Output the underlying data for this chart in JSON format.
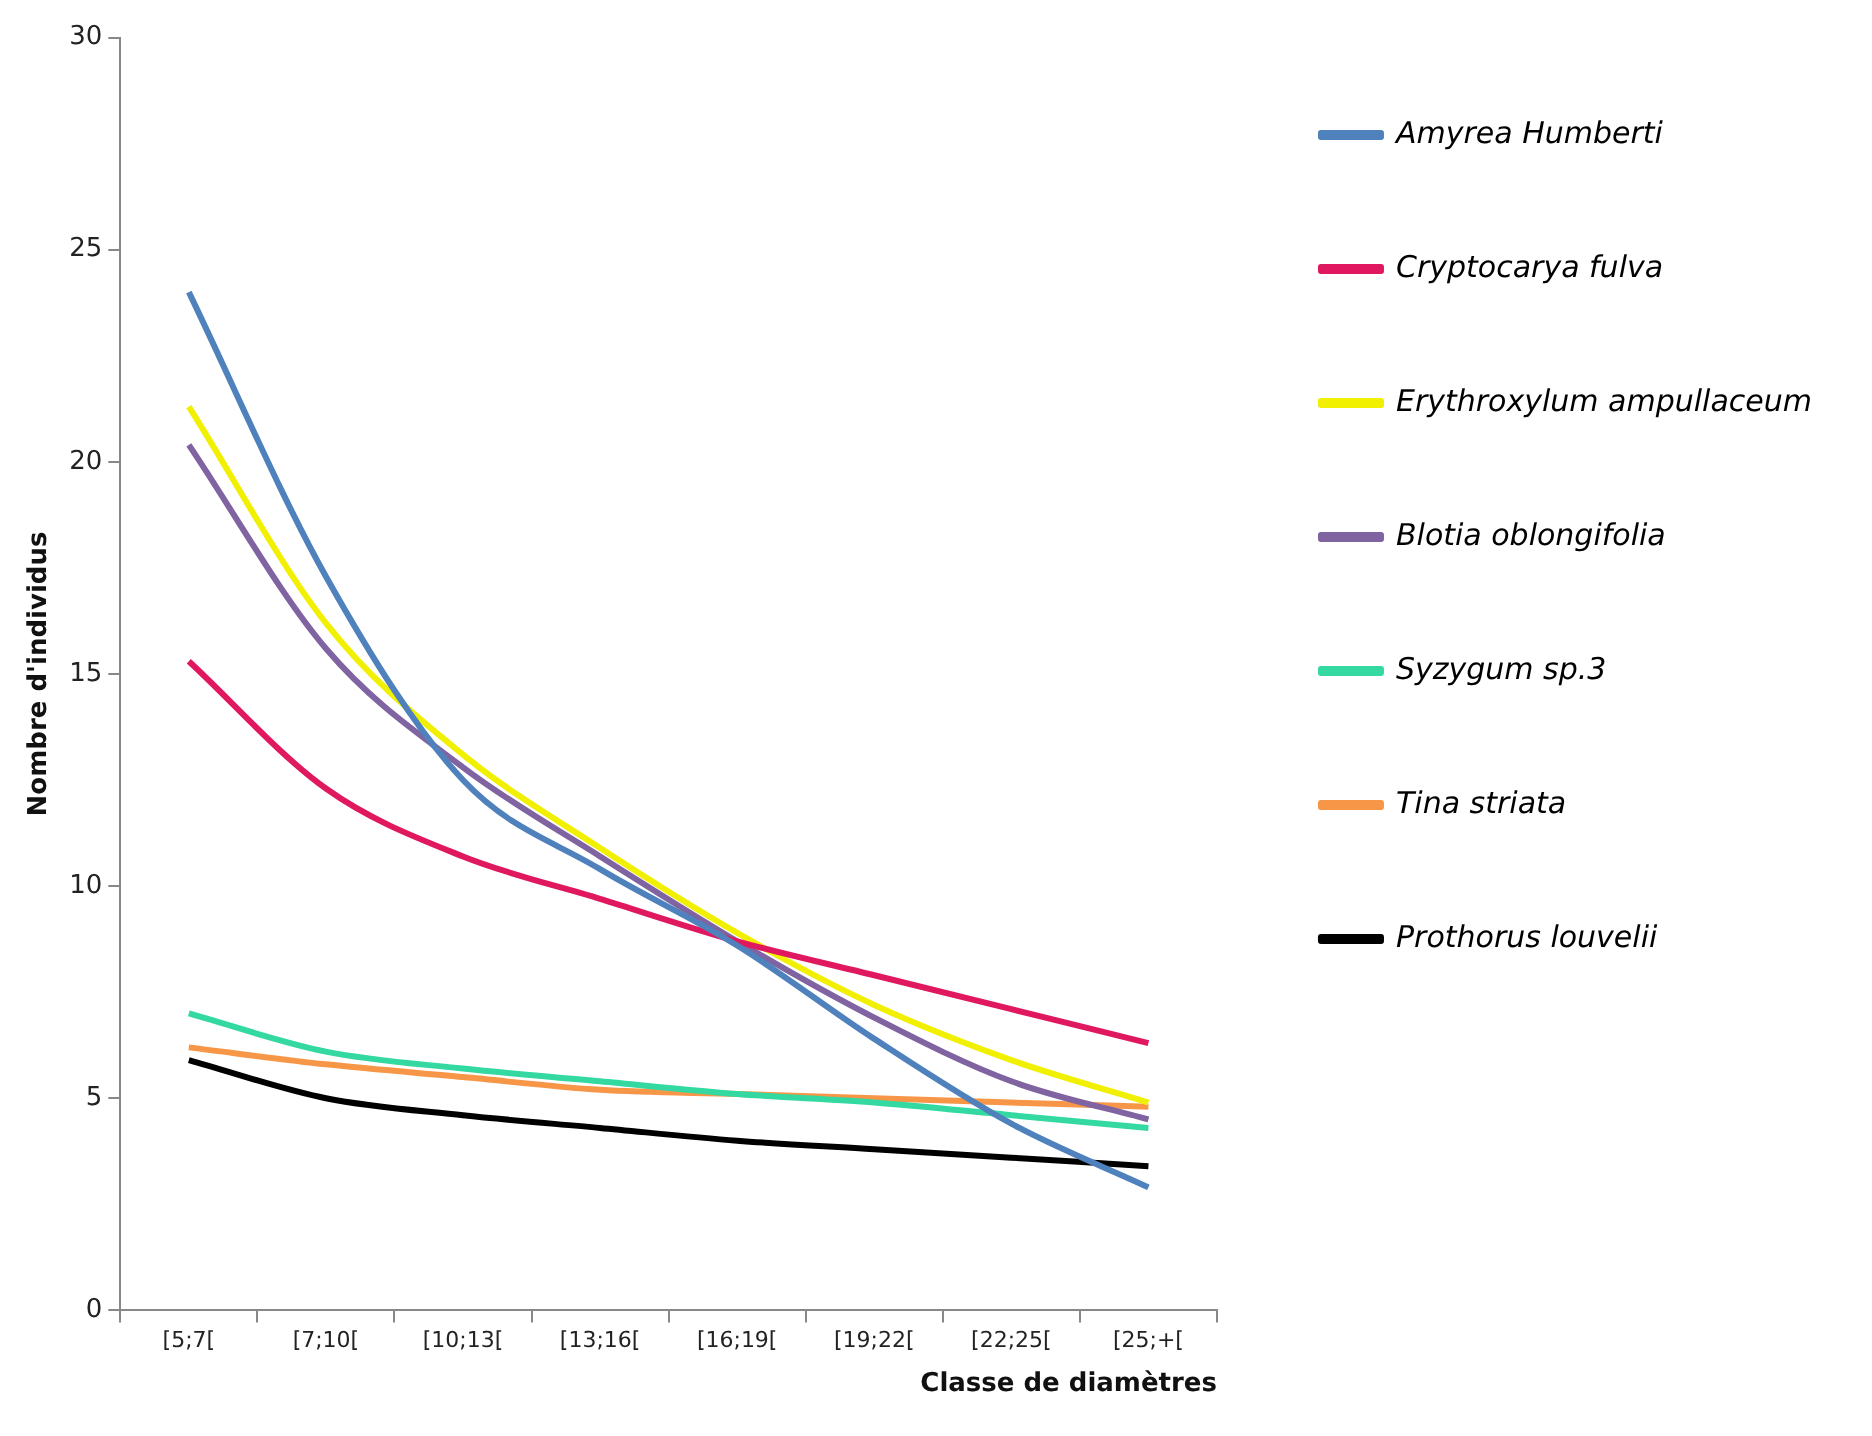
{
  "chart_data": {
    "type": "line",
    "xlabel": "Classe de diamètres",
    "ylabel": "Nombre d'individus",
    "categories": [
      "[5;7[",
      "[7;10[",
      "[10;13[",
      "[13;16[",
      "[16;19[",
      "[19;22[",
      "[22;25[",
      "[25;+["
    ],
    "series": [
      {
        "name": "Amyrea Humberti",
        "color": "#4f81bd",
        "values": [
          24,
          17.3,
          12.5,
          10.4,
          8.6,
          6.4,
          4.4,
          2.9
        ]
      },
      {
        "name": "Cryptocarya fulva",
        "color": "#e0185f",
        "values": [
          15.3,
          12.3,
          10.7,
          9.7,
          8.7,
          7.9,
          7.1,
          6.3
        ]
      },
      {
        "name": "Erythroxylum ampullaceum",
        "color": "#f0f000",
        "values": [
          21.3,
          16.2,
          13.1,
          10.9,
          8.9,
          7.2,
          5.9,
          4.9
        ]
      },
      {
        "name": "Blotia oblongifolia",
        "color": "#8064a2",
        "values": [
          20.4,
          15.6,
          12.8,
          10.7,
          8.7,
          6.9,
          5.4,
          4.5
        ]
      },
      {
        "name": "Syzygum sp.3",
        "color": "#33d9a0",
        "values": [
          7,
          6.1,
          5.7,
          5.4,
          5.1,
          4.9,
          4.6,
          4.3
        ]
      },
      {
        "name": "Tina striata",
        "color": "#f79646",
        "values": [
          6.2,
          5.8,
          5.5,
          5.2,
          5.1,
          5,
          4.9,
          4.8
        ]
      },
      {
        "name": "Prothorus louvelii",
        "color": "#000000",
        "values": [
          5.9,
          5,
          4.6,
          4.3,
          4,
          3.8,
          3.6,
          3.4
        ]
      }
    ],
    "ylim": [
      0,
      30
    ],
    "yticks": [
      0,
      5,
      10,
      15,
      20,
      25,
      30
    ],
    "grid": false,
    "legend": "right",
    "marker": "none",
    "line_style": "solid"
  }
}
